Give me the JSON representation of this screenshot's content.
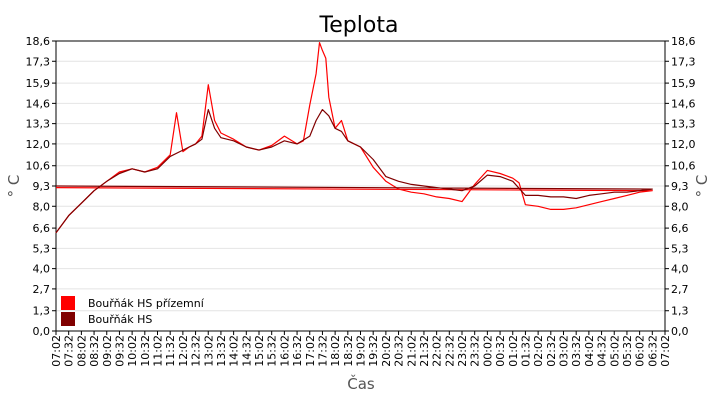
{
  "chart_data": {
    "type": "line",
    "title": "Teplota",
    "xlabel": "Čas",
    "ylabel": "° C",
    "ylim": [
      0.0,
      18.6
    ],
    "y_ticks": [
      "0,0",
      "1,3",
      "2,7",
      "4,0",
      "5,3",
      "6,6",
      "8,0",
      "9,3",
      "10,6",
      "12,0",
      "13,3",
      "14,6",
      "15,9",
      "17,3",
      "18,6"
    ],
    "x_ticks": [
      "07:02",
      "07:32",
      "08:02",
      "08:32",
      "09:02",
      "09:32",
      "10:02",
      "10:32",
      "11:02",
      "11:32",
      "12:02",
      "12:32",
      "13:02",
      "13:32",
      "14:02",
      "14:32",
      "15:02",
      "15:32",
      "16:02",
      "16:32",
      "17:02",
      "17:32",
      "18:02",
      "18:32",
      "19:02",
      "19:32",
      "20:02",
      "20:32",
      "21:02",
      "21:32",
      "22:02",
      "22:32",
      "23:02",
      "23:32",
      "00:02",
      "00:32",
      "01:02",
      "01:32",
      "02:02",
      "02:32",
      "03:02",
      "03:32",
      "04:02",
      "04:32",
      "05:02",
      "05:32",
      "06:02",
      "06:32",
      "07:02"
    ],
    "grid": true,
    "legend_position": "bottom-left",
    "series": [
      {
        "name": "Bouřňák HS přízemní",
        "color": "#ff0000",
        "x": [
          "07:02",
          "07:32",
          "08:02",
          "08:32",
          "09:02",
          "09:32",
          "10:02",
          "10:32",
          "11:02",
          "11:32",
          "11:47",
          "12:02",
          "12:17",
          "12:32",
          "12:47",
          "13:02",
          "13:17",
          "13:32",
          "14:02",
          "14:32",
          "15:02",
          "15:32",
          "16:02",
          "16:32",
          "16:47",
          "17:02",
          "17:17",
          "17:25",
          "17:32",
          "17:40",
          "17:47",
          "18:02",
          "18:17",
          "18:32",
          "19:02",
          "19:32",
          "20:02",
          "20:32",
          "21:02",
          "21:32",
          "22:02",
          "22:32",
          "23:02",
          "23:32",
          "00:02",
          "00:32",
          "01:02",
          "01:17",
          "01:32",
          "02:02",
          "02:32",
          "03:02",
          "03:32",
          "04:02",
          "04:32",
          "05:02",
          "05:32",
          "06:02",
          "06:32",
          "07:02"
        ],
        "values": [
          6.3,
          7.4,
          8.2,
          9.0,
          9.6,
          10.2,
          10.4,
          10.2,
          10.5,
          11.3,
          14.0,
          11.5,
          11.8,
          12.0,
          12.5,
          15.8,
          13.5,
          12.7,
          12.3,
          11.8,
          11.6,
          11.9,
          12.5,
          12.0,
          12.2,
          14.5,
          16.5,
          18.5,
          18.0,
          17.5,
          15.0,
          13.0,
          13.5,
          12.2,
          11.8,
          10.5,
          9.6,
          9.1,
          8.9,
          8.8,
          8.6,
          8.5,
          8.3,
          9.4,
          10.3,
          10.1,
          9.8,
          9.5,
          8.1,
          8.0,
          7.8,
          7.8,
          7.9,
          8.1,
          8.3,
          8.5,
          8.7,
          8.9,
          9.0,
          9.2
        ]
      },
      {
        "name": "Bouřňák HS",
        "color": "#800000",
        "x": [
          "07:02",
          "07:32",
          "08:02",
          "08:32",
          "09:02",
          "09:32",
          "10:02",
          "10:32",
          "11:02",
          "11:32",
          "12:02",
          "12:17",
          "12:32",
          "12:47",
          "13:02",
          "13:17",
          "13:32",
          "14:02",
          "14:32",
          "15:02",
          "15:32",
          "16:02",
          "16:32",
          "17:02",
          "17:17",
          "17:32",
          "17:47",
          "18:02",
          "18:17",
          "18:32",
          "19:02",
          "19:32",
          "20:02",
          "20:32",
          "21:02",
          "21:32",
          "22:02",
          "22:32",
          "23:02",
          "23:32",
          "00:02",
          "00:32",
          "01:02",
          "01:32",
          "02:02",
          "02:32",
          "03:02",
          "03:32",
          "04:02",
          "04:32",
          "05:02",
          "05:32",
          "06:02",
          "06:32",
          "07:02"
        ],
        "values": [
          6.3,
          7.4,
          8.2,
          9.0,
          9.6,
          10.1,
          10.4,
          10.2,
          10.4,
          11.2,
          11.6,
          11.8,
          12.0,
          12.3,
          14.2,
          13.0,
          12.4,
          12.2,
          11.8,
          11.6,
          11.8,
          12.2,
          12.0,
          12.5,
          13.5,
          14.2,
          13.8,
          13.0,
          12.8,
          12.2,
          11.8,
          11.0,
          9.9,
          9.6,
          9.4,
          9.3,
          9.2,
          9.1,
          9.0,
          9.3,
          10.0,
          9.9,
          9.6,
          8.7,
          8.7,
          8.6,
          8.6,
          8.5,
          8.7,
          8.8,
          8.9,
          8.9,
          9.0,
          9.1,
          9.3
        ]
      }
    ]
  }
}
